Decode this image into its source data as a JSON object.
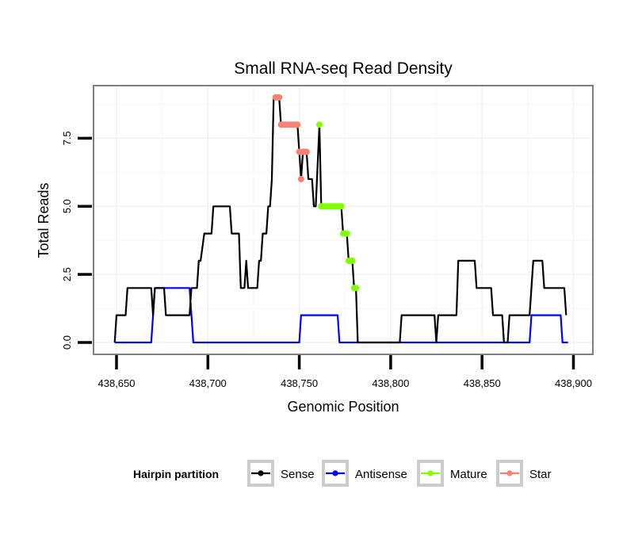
{
  "chart_data": {
    "type": "line",
    "title": "Small RNA-seq Read Density",
    "xlabel": "Genomic Position",
    "ylabel": "Total Reads",
    "xlim": [
      438648,
      438911
    ],
    "ylim": [
      -0.45,
      9.4
    ],
    "xticks": [
      438650,
      438700,
      438750,
      438800,
      438850,
      438900
    ],
    "xtick_labels": [
      "438,650",
      "438,700",
      "438,750",
      "438,800",
      "438,850",
      "438,900"
    ],
    "yticks": [
      0,
      2.5,
      5,
      7.5
    ],
    "ytick_labels": [
      "0.0",
      "2.5",
      "5.0",
      "7.5"
    ],
    "grid": true,
    "legend": {
      "title": "Hairpin partition",
      "placement": "bottom",
      "entries": [
        {
          "name": "Sense",
          "color": "#000000"
        },
        {
          "name": "Antisense",
          "color": "#0000ff"
        },
        {
          "name": "Mature",
          "color": "#7fff00"
        },
        {
          "name": "Star",
          "color": "#fa8072"
        }
      ]
    },
    "series": [
      {
        "name": "Sense",
        "color": "#000000",
        "points": [
          [
            438649,
            0
          ],
          [
            438650,
            1
          ],
          [
            438655,
            1
          ],
          [
            438656,
            2
          ],
          [
            438669,
            2
          ],
          [
            438670,
            1
          ],
          [
            438671,
            2
          ],
          [
            438676,
            2
          ],
          [
            438677,
            1
          ],
          [
            438690,
            1
          ],
          [
            438691,
            2
          ],
          [
            438694,
            2
          ],
          [
            438695,
            3
          ],
          [
            438696,
            3
          ],
          [
            438698,
            4
          ],
          [
            438702,
            4
          ],
          [
            438703,
            5
          ],
          [
            438712,
            5
          ],
          [
            438713,
            4
          ],
          [
            438717,
            4
          ],
          [
            438718,
            2
          ],
          [
            438720,
            2
          ],
          [
            438721,
            3
          ],
          [
            438722,
            2
          ],
          [
            438727,
            2
          ],
          [
            438728,
            3
          ],
          [
            438729,
            3
          ],
          [
            438730,
            4
          ],
          [
            438732,
            4
          ],
          [
            438733,
            5
          ],
          [
            438734,
            5
          ],
          [
            438735,
            6
          ],
          [
            438736,
            9
          ],
          [
            438739,
            9
          ],
          [
            438740,
            8
          ],
          [
            438749,
            8
          ],
          [
            438750,
            7
          ],
          [
            438751,
            6
          ],
          [
            438752,
            7
          ],
          [
            438754,
            7
          ],
          [
            438755,
            6
          ],
          [
            438757,
            6
          ],
          [
            438758,
            5
          ],
          [
            438759,
            5
          ],
          [
            438761,
            8
          ],
          [
            438762,
            5
          ],
          [
            438773,
            5
          ],
          [
            438774,
            4
          ],
          [
            438776,
            4
          ],
          [
            438777,
            3
          ],
          [
            438779,
            3
          ],
          [
            438780,
            2
          ],
          [
            438781,
            2
          ],
          [
            438782,
            0
          ],
          [
            438805,
            0
          ],
          [
            438806,
            1
          ],
          [
            438824,
            1
          ],
          [
            438825,
            0
          ],
          [
            438826,
            1
          ],
          [
            438836,
            1
          ],
          [
            438837,
            3
          ],
          [
            438846,
            3
          ],
          [
            438847,
            2
          ],
          [
            438855,
            2
          ],
          [
            438856,
            1
          ],
          [
            438861,
            1
          ],
          [
            438862,
            0
          ],
          [
            438864,
            0
          ],
          [
            438865,
            1
          ],
          [
            438876,
            1
          ],
          [
            438877,
            2
          ],
          [
            438878,
            3
          ],
          [
            438883,
            3
          ],
          [
            438884,
            2
          ],
          [
            438895,
            2
          ],
          [
            438896,
            1
          ]
        ]
      },
      {
        "name": "Antisense",
        "color": "#0000ff",
        "points": [
          [
            438649,
            0
          ],
          [
            438669,
            0
          ],
          [
            438671,
            2
          ],
          [
            438690,
            2
          ],
          [
            438692,
            0
          ],
          [
            438750,
            0
          ],
          [
            438751,
            1
          ],
          [
            438771,
            1
          ],
          [
            438772,
            0
          ],
          [
            438876,
            0
          ],
          [
            438877,
            1
          ],
          [
            438893,
            1
          ],
          [
            438894,
            0
          ],
          [
            438897,
            0
          ]
        ]
      },
      {
        "name": "Mature",
        "color": "#7fff00",
        "points": [
          [
            438761,
            8
          ],
          [
            438762,
            5
          ],
          [
            438763,
            5
          ],
          [
            438764,
            5
          ],
          [
            438765,
            5
          ],
          [
            438766,
            5
          ],
          [
            438767,
            5
          ],
          [
            438768,
            5
          ],
          [
            438769,
            5
          ],
          [
            438770,
            5
          ],
          [
            438771,
            5
          ],
          [
            438772,
            5
          ],
          [
            438773,
            5
          ],
          [
            438774,
            4
          ],
          [
            438775,
            4
          ],
          [
            438776,
            4
          ],
          [
            438777,
            3
          ],
          [
            438778,
            3
          ],
          [
            438779,
            3
          ],
          [
            438780,
            2
          ],
          [
            438781,
            2
          ]
        ]
      },
      {
        "name": "Star",
        "color": "#fa8072",
        "points": [
          [
            438737,
            9
          ],
          [
            438738,
            9
          ],
          [
            438739,
            9
          ],
          [
            438740,
            8
          ],
          [
            438741,
            8
          ],
          [
            438742,
            8
          ],
          [
            438743,
            8
          ],
          [
            438744,
            8
          ],
          [
            438745,
            8
          ],
          [
            438746,
            8
          ],
          [
            438747,
            8
          ],
          [
            438748,
            8
          ],
          [
            438749,
            8
          ],
          [
            438750,
            7
          ],
          [
            438751,
            6
          ],
          [
            438752,
            7
          ],
          [
            438753,
            7
          ],
          [
            438754,
            7
          ]
        ]
      }
    ]
  }
}
